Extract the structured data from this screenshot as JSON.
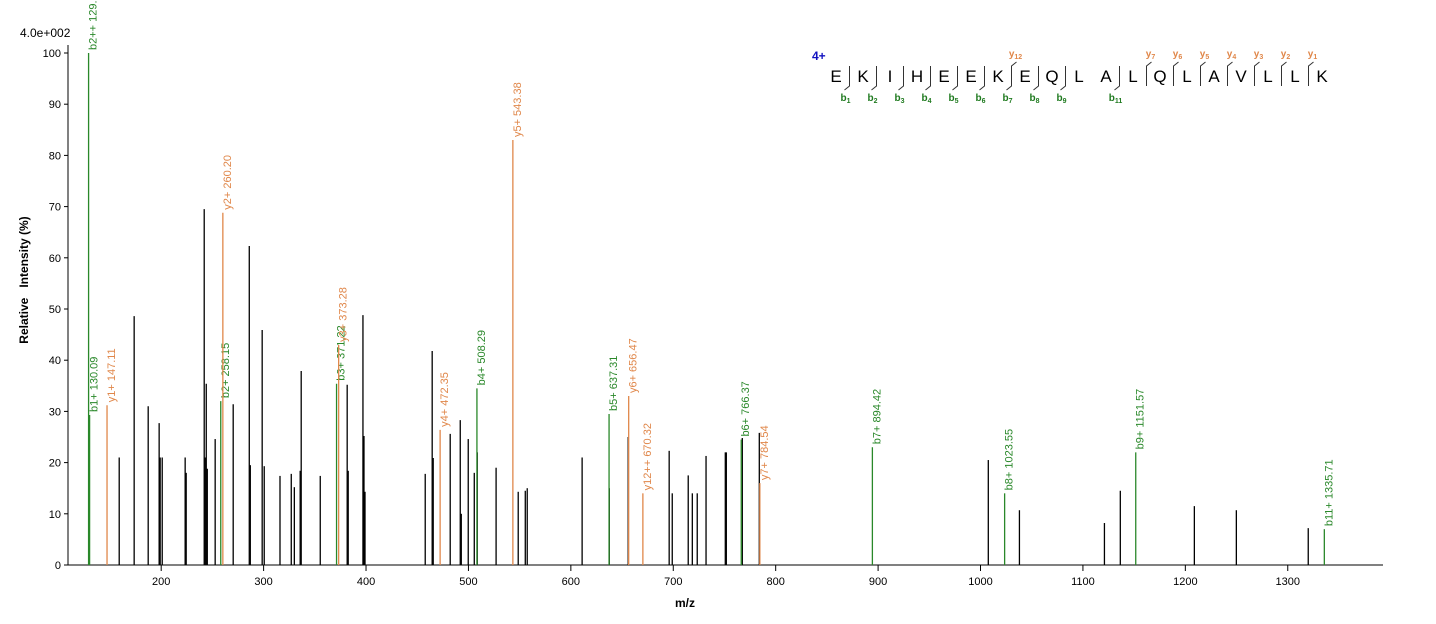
{
  "chart_data": {
    "type": "spectrum",
    "scale_label": "4.0e+002",
    "y_label": "Relative   Intensity (%)",
    "x_label": "m/z",
    "xlim": [
      109,
      1393
    ],
    "xticks": [
      200,
      300,
      400,
      500,
      600,
      700,
      800,
      900,
      1000,
      1100,
      1200,
      1300
    ],
    "ylim": [
      0,
      100
    ],
    "yticks": [
      0,
      10,
      20,
      30,
      40,
      50,
      60,
      70,
      80,
      90,
      100
    ],
    "peaks": [
      {
        "color": "#000000",
        "x": [
          159,
          173.6,
          187.3,
          198,
          199,
          201,
          223.4,
          224.4,
          242,
          243,
          244,
          245,
          252.7,
          270.3,
          286,
          287,
          298.6,
          300.6,
          316,
          327,
          330,
          335.7,
          336.7,
          355.3,
          381.6,
          382.6,
          397,
          398,
          399,
          457.8,
          464.6,
          465.6,
          482.2,
          492,
          493,
          499.8,
          505.7,
          508.6,
          527,
          548.6,
          555.5,
          557.4,
          611,
          637.5,
          656,
          696,
          699,
          714.6,
          718.6,
          723.4,
          732,
          750.8,
          751.8,
          767.4,
          784,
          1007.6,
          1038,
          1121,
          1136.5,
          1208.8,
          1249.8,
          1320
        ],
        "values": [
          21,
          48.6,
          31,
          27.7,
          21,
          21,
          21,
          18,
          69.5,
          21,
          35.4,
          18.8,
          24.6,
          31.4,
          62.3,
          19.5,
          45.9,
          19.3,
          17.4,
          17.8,
          15.2,
          18.4,
          37.9,
          17.4,
          35.2,
          18.4,
          48.8,
          25.2,
          14.3,
          17.8,
          41.8,
          20.9,
          25.6,
          28.3,
          10,
          24.6,
          18,
          22,
          19,
          14.3,
          14.5,
          15,
          21,
          15,
          25,
          22.3,
          14,
          17.5,
          14,
          14,
          21.3,
          22,
          22,
          24.8,
          25.8,
          20.5,
          10.7,
          8.2,
          14.5,
          11.5,
          10.7,
          7.2
        ]
      },
      {
        "color": "#2a882a",
        "x": [
          129.1,
          130.09,
          258.15,
          371.22,
          508.29,
          637.31,
          766.37,
          894.42,
          1023.55,
          1151.57,
          1335.71
        ],
        "values": [
          100,
          29.3,
          32,
          35.4,
          34.5,
          29.5,
          24.5,
          23,
          14,
          22,
          7
        ],
        "annotations": [
          "b2++ 129.10",
          "b1+ 130.09",
          "b2+ 258.15",
          "b3+ 371.22",
          "b4+ 508.29",
          "b5+ 637.31",
          "b6+ 766.37",
          "b7+ 894.42",
          "b8+ 1023.55",
          "b9+ 1151.57",
          "b11+ 1335.71"
        ]
      },
      {
        "color": "#e0874a",
        "x": [
          147.11,
          260.2,
          373.28,
          472.35,
          543.38,
          656.47,
          670.32,
          784.54
        ],
        "values": [
          31.2,
          68.8,
          43,
          26.4,
          83,
          33,
          14,
          16
        ],
        "annotations": [
          "y1+ 147.11",
          "y2+ 260.20",
          "y3+ 373.28",
          "y4+ 472.35",
          "y5+ 543.38",
          "y6+ 656.47",
          "y12++ 670.32",
          "y7+ 784.54"
        ]
      }
    ],
    "peptide": {
      "charge": "4+",
      "sequence": [
        "E",
        "K",
        "I",
        "H",
        "E",
        "E",
        "K",
        "E",
        "Q",
        "L",
        "A",
        "L",
        "Q",
        "L",
        "A",
        "V",
        "L",
        "L",
        "K"
      ],
      "b_ions": [
        {
          "ion": "b",
          "index": "1"
        },
        {
          "ion": "b",
          "index": "2"
        },
        {
          "ion": "b",
          "index": "3"
        },
        {
          "ion": "b",
          "index": "4"
        },
        {
          "ion": "b",
          "index": "5"
        },
        {
          "ion": "b",
          "index": "6"
        },
        {
          "ion": "b",
          "index": "7"
        },
        {
          "ion": "b",
          "index": "8"
        },
        {
          "ion": "b",
          "index": "9"
        },
        null,
        {
          "ion": "b",
          "index": "11"
        },
        null,
        null,
        null,
        null,
        null,
        null,
        null
      ],
      "y_ions": [
        null,
        null,
        null,
        null,
        null,
        null,
        {
          "ion": "y",
          "index": "12"
        },
        null,
        null,
        null,
        null,
        {
          "ion": "y",
          "index": "7"
        },
        {
          "ion": "y",
          "index": "6"
        },
        {
          "ion": "y",
          "index": "5"
        },
        {
          "ion": "y",
          "index": "4"
        },
        {
          "ion": "y",
          "index": "3"
        },
        {
          "ion": "y",
          "index": "2"
        },
        {
          "ion": "y",
          "index": "1"
        }
      ]
    }
  }
}
